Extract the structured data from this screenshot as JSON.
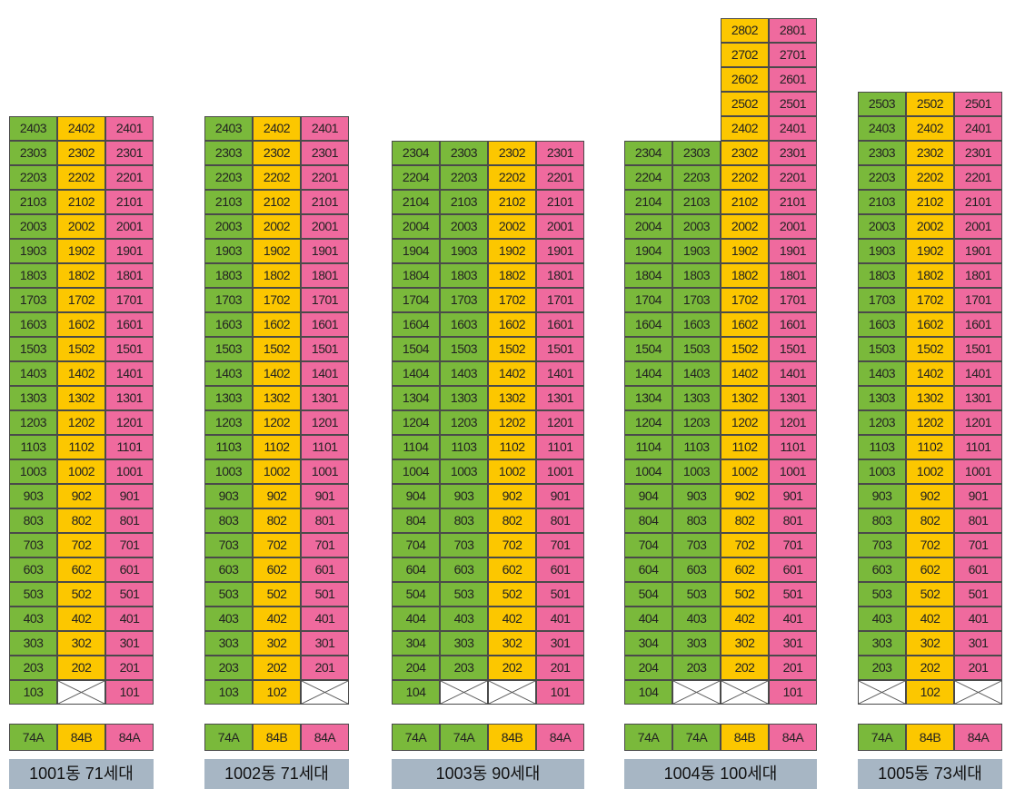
{
  "colors": {
    "74A": "#7ab93b",
    "84B": "#fcc700",
    "84A": "#ef6a9e",
    "empty": "#ffffff"
  },
  "buildings": [
    {
      "label": "1001동 71세대",
      "lines": [
        {
          "type": "74A",
          "units": [
            "103",
            "203",
            "303",
            "403",
            "503",
            "603",
            "703",
            "803",
            "903",
            "1003",
            "1103",
            "1203",
            "1303",
            "1403",
            "1503",
            "1603",
            "1703",
            "1803",
            "1903",
            "2003",
            "2103",
            "2203",
            "2303",
            "2403"
          ]
        },
        {
          "type": "84B",
          "units": [
            "",
            "202",
            "302",
            "402",
            "502",
            "602",
            "702",
            "802",
            "902",
            "1002",
            "1102",
            "1202",
            "1302",
            "1402",
            "1502",
            "1602",
            "1702",
            "1802",
            "1902",
            "2002",
            "2102",
            "2202",
            "2302",
            "2402"
          ]
        },
        {
          "type": "84A",
          "units": [
            "101",
            "201",
            "301",
            "401",
            "501",
            "601",
            "701",
            "801",
            "901",
            "1001",
            "1101",
            "1201",
            "1301",
            "1401",
            "1501",
            "1601",
            "1701",
            "1801",
            "1901",
            "2001",
            "2101",
            "2201",
            "2301",
            "2401"
          ]
        }
      ],
      "types": [
        "74A",
        "84B",
        "84A"
      ]
    },
    {
      "label": "1002동 71세대",
      "lines": [
        {
          "type": "74A",
          "units": [
            "103",
            "203",
            "303",
            "403",
            "503",
            "603",
            "703",
            "803",
            "903",
            "1003",
            "1103",
            "1203",
            "1303",
            "1403",
            "1503",
            "1603",
            "1703",
            "1803",
            "1903",
            "2003",
            "2103",
            "2203",
            "2303",
            "2403"
          ]
        },
        {
          "type": "84B",
          "units": [
            "102",
            "202",
            "302",
            "402",
            "502",
            "602",
            "702",
            "802",
            "902",
            "1002",
            "1102",
            "1202",
            "1302",
            "1402",
            "1502",
            "1602",
            "1702",
            "1802",
            "1902",
            "2002",
            "2102",
            "2202",
            "2302",
            "2402"
          ]
        },
        {
          "type": "84A",
          "units": [
            "",
            "201",
            "301",
            "401",
            "501",
            "601",
            "701",
            "801",
            "901",
            "1001",
            "1101",
            "1201",
            "1301",
            "1401",
            "1501",
            "1601",
            "1701",
            "1801",
            "1901",
            "2001",
            "2101",
            "2201",
            "2301",
            "2401"
          ]
        }
      ],
      "types": [
        "74A",
        "84B",
        "84A"
      ]
    },
    {
      "label": "1003동 90세대",
      "lines": [
        {
          "type": "74A",
          "units": [
            "104",
            "204",
            "304",
            "404",
            "504",
            "604",
            "704",
            "804",
            "904",
            "1004",
            "1104",
            "1204",
            "1304",
            "1404",
            "1504",
            "1604",
            "1704",
            "1804",
            "1904",
            "2004",
            "2104",
            "2204",
            "2304"
          ]
        },
        {
          "type": "74A",
          "units": [
            "",
            "203",
            "303",
            "403",
            "503",
            "603",
            "703",
            "803",
            "903",
            "1003",
            "1103",
            "1203",
            "1303",
            "1403",
            "1503",
            "1603",
            "1703",
            "1803",
            "1903",
            "2003",
            "2103",
            "2203",
            "2303"
          ]
        },
        {
          "type": "84B",
          "units": [
            "",
            "202",
            "302",
            "402",
            "502",
            "602",
            "702",
            "802",
            "902",
            "1002",
            "1102",
            "1202",
            "1302",
            "1402",
            "1502",
            "1602",
            "1702",
            "1802",
            "1902",
            "2002",
            "2102",
            "2202",
            "2302"
          ]
        },
        {
          "type": "84A",
          "units": [
            "101",
            "201",
            "301",
            "401",
            "501",
            "601",
            "701",
            "801",
            "901",
            "1001",
            "1101",
            "1201",
            "1301",
            "1401",
            "1501",
            "1601",
            "1701",
            "1801",
            "1901",
            "2001",
            "2101",
            "2201",
            "2301"
          ]
        }
      ],
      "types": [
        "74A",
        "74A",
        "84B",
        "84A"
      ]
    },
    {
      "label": "1004동 100세대",
      "lines": [
        {
          "type": "74A",
          "units": [
            "104",
            "204",
            "304",
            "404",
            "504",
            "604",
            "704",
            "804",
            "904",
            "1004",
            "1104",
            "1204",
            "1304",
            "1404",
            "1504",
            "1604",
            "1704",
            "1804",
            "1904",
            "2004",
            "2104",
            "2204",
            "2304"
          ]
        },
        {
          "type": "74A",
          "units": [
            "",
            "203",
            "303",
            "403",
            "503",
            "603",
            "703",
            "803",
            "903",
            "1003",
            "1103",
            "1203",
            "1303",
            "1403",
            "1503",
            "1603",
            "1703",
            "1803",
            "1903",
            "2003",
            "2103",
            "2203",
            "2303"
          ]
        },
        {
          "type": "84B",
          "units": [
            "",
            "202",
            "302",
            "402",
            "502",
            "602",
            "702",
            "802",
            "902",
            "1002",
            "1102",
            "1202",
            "1302",
            "1402",
            "1502",
            "1602",
            "1702",
            "1802",
            "1902",
            "2002",
            "2102",
            "2202",
            "2302",
            "2402",
            "2502",
            "2602",
            "2702",
            "2802"
          ]
        },
        {
          "type": "84A",
          "units": [
            "101",
            "201",
            "301",
            "401",
            "501",
            "601",
            "701",
            "801",
            "901",
            "1001",
            "1101",
            "1201",
            "1301",
            "1401",
            "1501",
            "1601",
            "1701",
            "1801",
            "1901",
            "2001",
            "2101",
            "2201",
            "2301",
            "2401",
            "2501",
            "2601",
            "2701",
            "2801"
          ]
        }
      ],
      "types": [
        "74A",
        "74A",
        "84B",
        "84A"
      ]
    },
    {
      "label": "1005동 73세대",
      "lines": [
        {
          "type": "74A",
          "units": [
            "",
            "203",
            "303",
            "403",
            "503",
            "603",
            "703",
            "803",
            "903",
            "1003",
            "1103",
            "1203",
            "1303",
            "1403",
            "1503",
            "1603",
            "1703",
            "1803",
            "1903",
            "2003",
            "2103",
            "2203",
            "2303",
            "2403",
            "2503"
          ]
        },
        {
          "type": "84B",
          "units": [
            "102",
            "202",
            "302",
            "402",
            "502",
            "602",
            "702",
            "802",
            "902",
            "1002",
            "1102",
            "1202",
            "1302",
            "1402",
            "1502",
            "1602",
            "1702",
            "1802",
            "1902",
            "2002",
            "2102",
            "2202",
            "2302",
            "2402",
            "2502"
          ]
        },
        {
          "type": "84A",
          "units": [
            "",
            "201",
            "301",
            "401",
            "501",
            "601",
            "701",
            "801",
            "901",
            "1001",
            "1101",
            "1201",
            "1301",
            "1401",
            "1501",
            "1601",
            "1701",
            "1801",
            "1901",
            "2001",
            "2101",
            "2201",
            "2301",
            "2401",
            "2501"
          ]
        }
      ],
      "types": [
        "74A",
        "84B",
        "84A"
      ]
    }
  ]
}
